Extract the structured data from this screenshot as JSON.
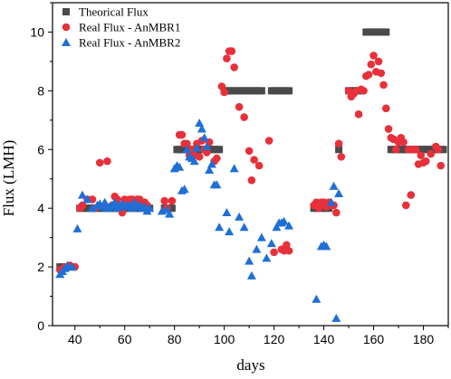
{
  "chart_data": {
    "type": "scatter",
    "xlabel": "days",
    "ylabel": "Flux (LMH)",
    "xlim": [
      31,
      190
    ],
    "ylim": [
      0,
      11
    ],
    "xticks": [
      "40",
      "60",
      "80",
      "100",
      "120",
      "140",
      "160",
      "180"
    ],
    "yticks": [
      "0",
      "2",
      "4",
      "6",
      "8",
      "10"
    ],
    "grid": false,
    "legend_position": "top-left",
    "series": [
      {
        "name": "Theorical Flux",
        "marker": "square",
        "color": "#4a4a4a",
        "points": [
          [
            34,
            2
          ],
          [
            35,
            2
          ],
          [
            36,
            2
          ],
          [
            37,
            2
          ],
          [
            38,
            2
          ],
          [
            39,
            2
          ],
          [
            42,
            4
          ],
          [
            43,
            4
          ],
          [
            44,
            4
          ],
          [
            45,
            4
          ],
          [
            46,
            4
          ],
          [
            47,
            4
          ],
          [
            48,
            4
          ],
          [
            49,
            4
          ],
          [
            50,
            4
          ],
          [
            51,
            4
          ],
          [
            52,
            4
          ],
          [
            53,
            4
          ],
          [
            54,
            4
          ],
          [
            55,
            4
          ],
          [
            56,
            4
          ],
          [
            57,
            4
          ],
          [
            58,
            4
          ],
          [
            59,
            4
          ],
          [
            60,
            4
          ],
          [
            61,
            4
          ],
          [
            62,
            4
          ],
          [
            63,
            4
          ],
          [
            64,
            4
          ],
          [
            65,
            4
          ],
          [
            66,
            4
          ],
          [
            67,
            4
          ],
          [
            68,
            4
          ],
          [
            69,
            4
          ],
          [
            70,
            4
          ],
          [
            76,
            4
          ],
          [
            77,
            4
          ],
          [
            78,
            4
          ],
          [
            79,
            4
          ],
          [
            81,
            6
          ],
          [
            82,
            6
          ],
          [
            83,
            6
          ],
          [
            84,
            6
          ],
          [
            85,
            6
          ],
          [
            86,
            6
          ],
          [
            87,
            6
          ],
          [
            88,
            6
          ],
          [
            89,
            6
          ],
          [
            90,
            6
          ],
          [
            91,
            6
          ],
          [
            92,
            6
          ],
          [
            93,
            6
          ],
          [
            94,
            6
          ],
          [
            95,
            6
          ],
          [
            96,
            6
          ],
          [
            97,
            6
          ],
          [
            98,
            6
          ],
          [
            100,
            8
          ],
          [
            101,
            8
          ],
          [
            102,
            8
          ],
          [
            103,
            8
          ],
          [
            104,
            8
          ],
          [
            105,
            8
          ],
          [
            106,
            8
          ],
          [
            107,
            8
          ],
          [
            108,
            8
          ],
          [
            109,
            8
          ],
          [
            110,
            8
          ],
          [
            111,
            8
          ],
          [
            112,
            8
          ],
          [
            113,
            8
          ],
          [
            114,
            8
          ],
          [
            115,
            8
          ],
          [
            119,
            8
          ],
          [
            120,
            8
          ],
          [
            121,
            8
          ],
          [
            122,
            8
          ],
          [
            123,
            8
          ],
          [
            124,
            8
          ],
          [
            125,
            8
          ],
          [
            126,
            8
          ],
          [
            136,
            4
          ],
          [
            137,
            4
          ],
          [
            138,
            4
          ],
          [
            139,
            4
          ],
          [
            140,
            4
          ],
          [
            141,
            4
          ],
          [
            142,
            4
          ],
          [
            146,
            6
          ],
          [
            150,
            8
          ],
          [
            151,
            8
          ],
          [
            152,
            8
          ],
          [
            153,
            8
          ],
          [
            154,
            8
          ],
          [
            157,
            10
          ],
          [
            158,
            10
          ],
          [
            159,
            10
          ],
          [
            160,
            10
          ],
          [
            161,
            10
          ],
          [
            162,
            10
          ],
          [
            163,
            10
          ],
          [
            164,
            10
          ],
          [
            165,
            10
          ],
          [
            167,
            6
          ],
          [
            168,
            6
          ],
          [
            169,
            6
          ],
          [
            170,
            6
          ],
          [
            171,
            6
          ],
          [
            172,
            6
          ],
          [
            173,
            6
          ],
          [
            174,
            6
          ],
          [
            175,
            6
          ],
          [
            176,
            6
          ],
          [
            177,
            6
          ],
          [
            178,
            6
          ],
          [
            179,
            6
          ],
          [
            180,
            6
          ],
          [
            181,
            6
          ],
          [
            182,
            6
          ],
          [
            183,
            6
          ],
          [
            184,
            6
          ],
          [
            185,
            6
          ],
          [
            186,
            6
          ],
          [
            187,
            6
          ],
          [
            188,
            6
          ]
        ]
      },
      {
        "name": "Real Flux - AnMBR1",
        "marker": "circle",
        "color": "#e8303a",
        "points": [
          [
            34,
            1.9
          ],
          [
            36,
            2.0
          ],
          [
            38,
            2.05
          ],
          [
            40,
            2.0
          ],
          [
            42,
            4.0
          ],
          [
            43,
            4.1
          ],
          [
            45,
            4.3
          ],
          [
            47,
            4.3
          ],
          [
            48,
            4.0
          ],
          [
            50,
            5.55
          ],
          [
            52,
            4.1
          ],
          [
            53,
            5.6
          ],
          [
            55,
            4.1
          ],
          [
            56,
            4.4
          ],
          [
            57,
            4.3
          ],
          [
            58,
            4.1
          ],
          [
            59,
            3.85
          ],
          [
            60,
            4.3
          ],
          [
            61,
            4.2
          ],
          [
            62,
            4.3
          ],
          [
            63,
            4.3
          ],
          [
            64,
            4.15
          ],
          [
            65,
            4.3
          ],
          [
            66,
            4.3
          ],
          [
            67,
            4.1
          ],
          [
            68,
            4.2
          ],
          [
            69,
            4.1
          ],
          [
            76,
            4.25
          ],
          [
            77,
            4.0
          ],
          [
            79,
            4.25
          ],
          [
            82,
            6.5
          ],
          [
            83,
            6.5
          ],
          [
            84,
            6.2
          ],
          [
            85,
            6.2
          ],
          [
            86,
            5.8
          ],
          [
            87,
            6.0
          ],
          [
            88,
            5.8
          ],
          [
            89,
            6.2
          ],
          [
            90,
            5.75
          ],
          [
            91,
            6.3
          ],
          [
            92,
            6.0
          ],
          [
            93,
            5.9
          ],
          [
            94,
            6.25
          ],
          [
            96,
            5.6
          ],
          [
            97,
            5.7
          ],
          [
            99,
            8.15
          ],
          [
            100,
            7.95
          ],
          [
            101,
            9.1
          ],
          [
            102,
            9.35
          ],
          [
            103,
            9.35
          ],
          [
            104,
            8.8
          ],
          [
            106,
            7.45
          ],
          [
            108,
            7.1
          ],
          [
            110,
            5.95
          ],
          [
            111,
            4.95
          ],
          [
            112,
            5.65
          ],
          [
            114,
            5.45
          ],
          [
            118,
            6.3
          ],
          [
            120,
            2.5
          ],
          [
            123,
            2.6
          ],
          [
            124,
            2.55
          ],
          [
            125,
            2.75
          ],
          [
            126,
            2.55
          ],
          [
            136,
            4.1
          ],
          [
            137,
            4.2
          ],
          [
            138,
            4.0
          ],
          [
            139,
            4.2
          ],
          [
            140,
            4.2
          ],
          [
            141,
            4.05
          ],
          [
            142,
            4.2
          ],
          [
            143,
            4.1
          ],
          [
            144,
            4.1
          ],
          [
            145,
            3.85
          ],
          [
            146,
            6.2
          ],
          [
            147,
            5.75
          ],
          [
            150,
            8.0
          ],
          [
            151,
            7.8
          ],
          [
            152,
            7.9
          ],
          [
            153,
            8.0
          ],
          [
            154,
            7.2
          ],
          [
            155,
            8.05
          ],
          [
            156,
            8.0
          ],
          [
            157,
            8.5
          ],
          [
            158,
            8.55
          ],
          [
            159,
            8.9
          ],
          [
            160,
            9.2
          ],
          [
            161,
            8.65
          ],
          [
            162,
            9.0
          ],
          [
            163,
            8.6
          ],
          [
            164,
            8.2
          ],
          [
            165,
            7.4
          ],
          [
            166,
            6.7
          ],
          [
            167,
            6.4
          ],
          [
            168,
            6.35
          ],
          [
            169,
            6.0
          ],
          [
            170,
            6.25
          ],
          [
            171,
            6.4
          ],
          [
            172,
            6.25
          ],
          [
            173,
            4.1
          ],
          [
            174,
            6.0
          ],
          [
            175,
            4.45
          ],
          [
            176,
            6.0
          ],
          [
            177,
            6.0
          ],
          [
            178,
            5.5
          ],
          [
            179,
            5.8
          ],
          [
            180,
            5.55
          ],
          [
            181,
            5.6
          ],
          [
            183,
            5.85
          ],
          [
            185,
            6.1
          ],
          [
            186,
            6.0
          ],
          [
            187,
            5.45
          ]
        ]
      },
      {
        "name": "Real Flux - AnMBR2",
        "marker": "triangle",
        "color": "#1f6fd6",
        "points": [
          [
            34,
            1.75
          ],
          [
            35,
            1.85
          ],
          [
            36,
            1.95
          ],
          [
            37,
            2.05
          ],
          [
            39,
            2.0
          ],
          [
            41,
            3.3
          ],
          [
            43,
            4.45
          ],
          [
            45,
            4.3
          ],
          [
            47,
            4.0
          ],
          [
            49,
            4.1
          ],
          [
            50,
            4.15
          ],
          [
            51,
            4.05
          ],
          [
            52,
            4.2
          ],
          [
            53,
            4.0
          ],
          [
            54,
            4.05
          ],
          [
            55,
            4.1
          ],
          [
            56,
            4.2
          ],
          [
            57,
            4.0
          ],
          [
            58,
            4.1
          ],
          [
            59,
            4.15
          ],
          [
            60,
            4.05
          ],
          [
            61,
            4.1
          ],
          [
            62,
            4.1
          ],
          [
            63,
            4.0
          ],
          [
            64,
            4.2
          ],
          [
            65,
            4.05
          ],
          [
            66,
            4.1
          ],
          [
            67,
            4.0
          ],
          [
            68,
            4.05
          ],
          [
            69,
            3.9
          ],
          [
            70,
            4.0
          ],
          [
            75,
            3.9
          ],
          [
            77,
            3.95
          ],
          [
            78,
            3.8
          ],
          [
            80,
            5.35
          ],
          [
            81,
            5.45
          ],
          [
            82,
            5.4
          ],
          [
            83,
            4.6
          ],
          [
            84,
            4.65
          ],
          [
            85,
            6.0
          ],
          [
            86,
            5.75
          ],
          [
            87,
            5.7
          ],
          [
            88,
            5.6
          ],
          [
            89,
            6.05
          ],
          [
            90,
            6.9
          ],
          [
            91,
            6.7
          ],
          [
            92,
            6.4
          ],
          [
            93,
            6.1
          ],
          [
            94,
            5.3
          ],
          [
            95,
            5.5
          ],
          [
            96,
            4.8
          ],
          [
            97,
            4.8
          ],
          [
            98,
            3.35
          ],
          [
            101,
            3.85
          ],
          [
            102,
            3.2
          ],
          [
            104,
            5.35
          ],
          [
            106,
            3.7
          ],
          [
            108,
            3.35
          ],
          [
            110,
            2.2
          ],
          [
            111,
            1.7
          ],
          [
            113,
            2.6
          ],
          [
            115,
            3.0
          ],
          [
            117,
            2.3
          ],
          [
            119,
            2.8
          ],
          [
            121,
            3.35
          ],
          [
            122,
            3.5
          ],
          [
            123,
            3.5
          ],
          [
            124,
            3.55
          ],
          [
            126,
            3.4
          ],
          [
            137,
            0.9
          ],
          [
            139,
            2.7
          ],
          [
            140,
            2.75
          ],
          [
            141,
            2.7
          ],
          [
            143,
            4.2
          ],
          [
            144,
            4.75
          ],
          [
            145,
            0.25
          ],
          [
            146,
            4.5
          ]
        ]
      }
    ]
  }
}
